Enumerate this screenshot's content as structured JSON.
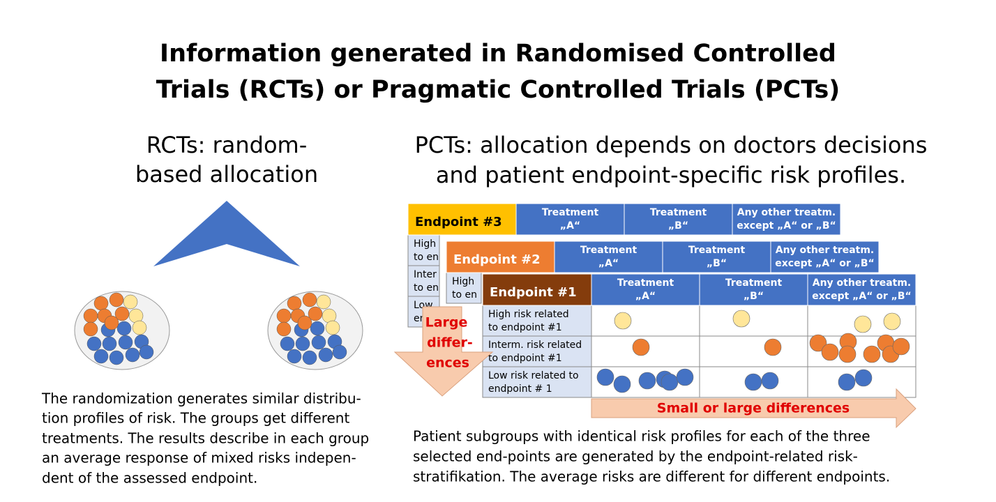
{
  "title": [
    "Information generated in Randomised Controlled",
    "Trials (RCTs) or Pragmatic Controlled Trials (PCTs)"
  ],
  "rct": {
    "heading": [
      "RCTs: random-",
      "based allocation"
    ],
    "description": [
      "The randomization generates similar distribu-",
      "tion profiles of risk. The groups get different",
      "treatments. The results describe in each group",
      "an average response of mixed risks indepen-",
      "dent of the assessed endpoint."
    ]
  },
  "pct": {
    "heading": [
      "PCTs: allocation depends on doctors decisions",
      "and patient endpoint-specific risk profiles."
    ],
    "tables": [
      {
        "endpoint": "Endpoint #3",
        "columns": [
          [
            "Treatment",
            "„A“"
          ],
          [
            "Treatment",
            "„B“"
          ],
          [
            "Any other treatm.",
            "except „A“ or „B“"
          ]
        ],
        "rows": [
          [
            "High",
            "to en"
          ],
          [
            "Inter",
            "to en"
          ],
          [
            "Low",
            "en"
          ]
        ]
      },
      {
        "endpoint": "Endpoint #2",
        "columns": [
          [
            "Treatment",
            "„A“"
          ],
          [
            "Treatment",
            "„B“"
          ],
          [
            "Any other treatm.",
            "except „A“ or „B“"
          ]
        ],
        "rows": [
          [
            "High",
            "to en"
          ]
        ]
      },
      {
        "endpoint": "Endpoint #1",
        "columns": [
          [
            "Treatment",
            "„A“"
          ],
          [
            "Treatment",
            "„B“"
          ],
          [
            "Any other treatm.",
            "except „A“ or „B“"
          ]
        ],
        "rows": [
          [
            "High risk related",
            "to endpoint #1"
          ],
          [
            "Interm. risk related",
            "to endpoint #1"
          ],
          [
            "Low risk related to",
            "endpoint # 1"
          ]
        ]
      }
    ],
    "vertical_arrow": [
      "Large",
      "differ-",
      "ences"
    ],
    "horizontal_arrow": "Small or large differences",
    "description": [
      "Patient subgroups with identical risk profiles for each of the three",
      "selected end-points are generated by the endpoint-related risk-",
      "stratifikation. The average risks are different for different endpoints."
    ]
  }
}
